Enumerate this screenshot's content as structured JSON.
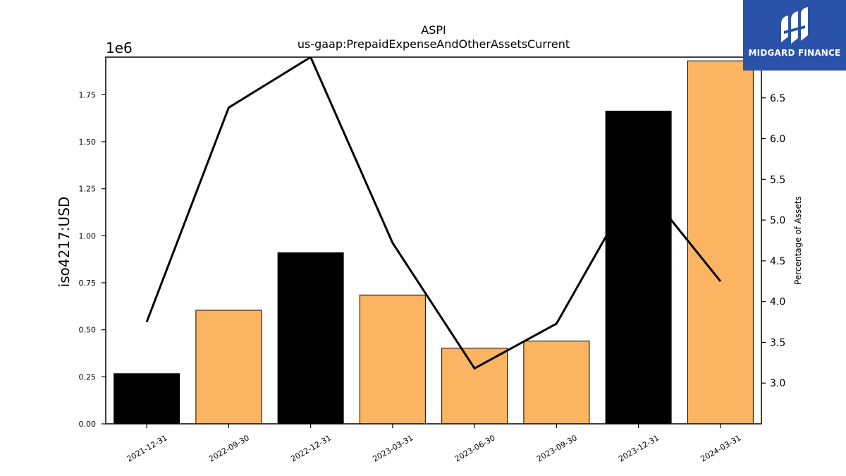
{
  "brand": {
    "name": "MIDGARD FINANCE",
    "logo_color": "#2a52a8"
  },
  "chart_data": {
    "type": "bar",
    "title": "ASPI",
    "subtitle": "us-gaap:PrepaidExpenseAndOtherAssetsCurrent",
    "categories": [
      "2021-12-31",
      "2022-09-30",
      "2022-12-31",
      "2023-03-31",
      "2023-06-30",
      "2023-09-30",
      "2023-12-31",
      "2024-03-31"
    ],
    "bar_colors": [
      "#000000",
      "#fbb462",
      "#000000",
      "#fbb462",
      "#fbb462",
      "#fbb462",
      "#000000",
      "#fbb462"
    ],
    "values": [
      267000,
      604000,
      910000,
      685000,
      402000,
      440000,
      1663000,
      1930000
    ],
    "ylabel": "iso4217:USD",
    "y_offset_label": "1e6",
    "ylim": [
      0,
      1950000
    ],
    "yticks": [
      0,
      250000,
      500000,
      750000,
      1000000,
      1250000,
      1500000,
      1750000
    ],
    "ytick_labels": [
      "0.00",
      "0.25",
      "0.50",
      "0.75",
      "1.00",
      "1.25",
      "1.50",
      "1.75"
    ],
    "line_series": {
      "values": [
        3.75,
        6.38,
        7.0,
        4.72,
        3.18,
        3.73,
        5.5,
        4.25
      ],
      "color": "#000000"
    },
    "y2label": "Percentage of Assets",
    "y2lim": [
      2.5,
      7.0
    ],
    "y2ticks": [
      3.0,
      3.5,
      4.0,
      4.5,
      5.0,
      5.5,
      6.0,
      6.5
    ],
    "y2tick_labels": [
      "3.0",
      "3.5",
      "4.0",
      "4.5",
      "5.0",
      "5.5",
      "6.0",
      "6.5"
    ]
  }
}
